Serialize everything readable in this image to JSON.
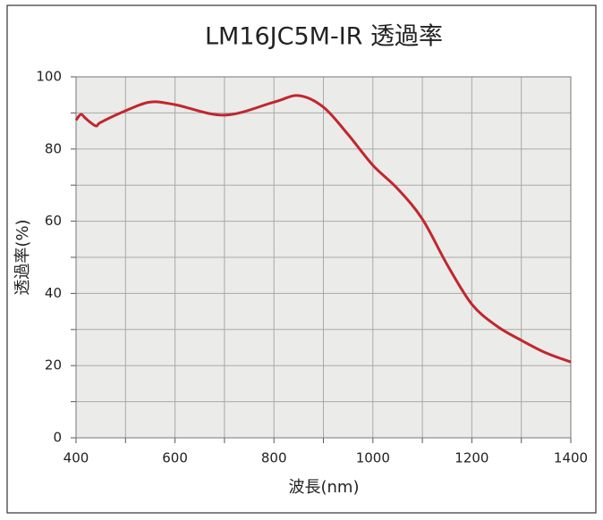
{
  "chart_data": {
    "type": "line",
    "title": "LM16JC5M-IR 透過率",
    "x_label": "波長(nm)",
    "y_label": "透過率(%)",
    "x": [
      400,
      410,
      420,
      440,
      450,
      500,
      550,
      600,
      700,
      800,
      850,
      900,
      950,
      1000,
      1050,
      1100,
      1150,
      1200,
      1250,
      1300,
      1350,
      1400
    ],
    "series": [
      {
        "name": "透過率",
        "color": "#c0272d",
        "values": [
          88,
          89.6,
          88.4,
          86.4,
          87.4,
          90.6,
          93,
          92.3,
          89.4,
          93,
          94.8,
          91.6,
          84,
          75.5,
          69,
          60.6,
          48,
          37,
          31,
          27,
          23.5,
          21
        ]
      }
    ],
    "xlim": [
      400,
      1400
    ],
    "ylim": [
      0,
      100
    ],
    "xticks": [
      400,
      600,
      800,
      1000,
      1200,
      1400
    ],
    "yticks": [
      0,
      20,
      40,
      60,
      80,
      100
    ],
    "xminor": [
      500,
      700,
      900,
      1100,
      1300
    ],
    "yminor": [
      10,
      30,
      50,
      70,
      90
    ],
    "grid": true
  }
}
